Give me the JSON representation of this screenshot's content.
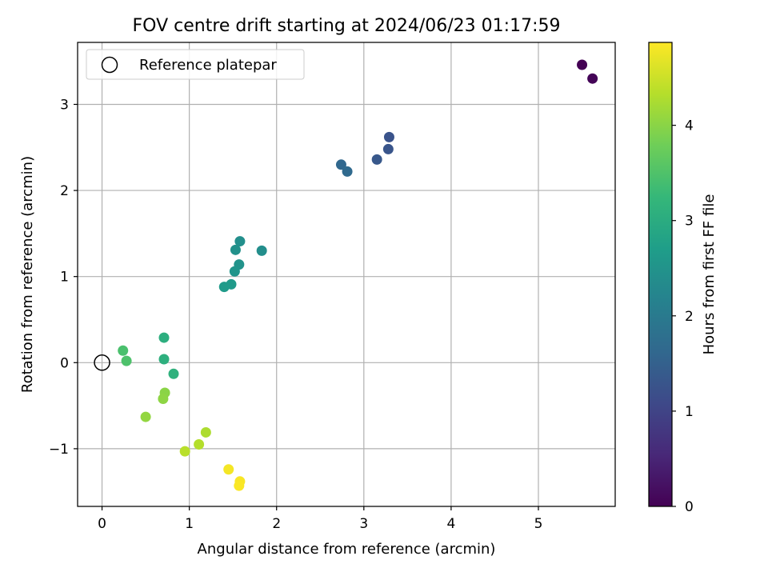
{
  "chart_data": {
    "type": "scatter",
    "title": "FOV centre drift starting at 2024/06/23 01:17:59",
    "xlabel": "Angular distance from reference (arcmin)",
    "ylabel": "Rotation from reference (arcmin)",
    "xlim": [
      -0.28,
      5.88
    ],
    "ylim": [
      -1.67,
      3.72
    ],
    "x_ticks": [
      0,
      1,
      2,
      3,
      4,
      5
    ],
    "y_ticks": [
      -1,
      0,
      1,
      2,
      3
    ],
    "x_tick_labels": [
      "0",
      "1",
      "2",
      "3",
      "4",
      "5"
    ],
    "y_tick_labels": [
      "−1",
      "0",
      "1",
      "2",
      "3"
    ],
    "grid": true,
    "legend": {
      "position": "top-left",
      "entries": [
        {
          "label": "Reference platepar",
          "marker": "open-circle",
          "color": "#000000"
        }
      ]
    },
    "reference_point": {
      "x": 0,
      "y": 0
    },
    "colorbar": {
      "label": "Hours from first FF file",
      "range": [
        0,
        4.87
      ],
      "ticks": [
        0,
        1,
        2,
        3,
        4
      ],
      "tick_labels": [
        "0",
        "1",
        "2",
        "3",
        "4"
      ],
      "colormap": "viridis",
      "colormap_stops": [
        "#440154",
        "#482878",
        "#3e4989",
        "#31688e",
        "#26828e",
        "#1f9e89",
        "#35b779",
        "#6ece58",
        "#b5de2b",
        "#fde725"
      ]
    },
    "points": [
      {
        "x": 5.5,
        "y": 3.46,
        "hours": 0.0
      },
      {
        "x": 5.62,
        "y": 3.3,
        "hours": 0.05
      },
      {
        "x": 3.29,
        "y": 2.62,
        "hours": 1.25
      },
      {
        "x": 3.28,
        "y": 2.48,
        "hours": 1.3
      },
      {
        "x": 3.15,
        "y": 2.36,
        "hours": 1.35
      },
      {
        "x": 2.74,
        "y": 2.3,
        "hours": 1.62
      },
      {
        "x": 2.81,
        "y": 2.22,
        "hours": 1.66
      },
      {
        "x": 1.58,
        "y": 1.41,
        "hours": 2.42
      },
      {
        "x": 1.53,
        "y": 1.31,
        "hours": 2.46
      },
      {
        "x": 1.83,
        "y": 1.3,
        "hours": 2.4
      },
      {
        "x": 1.57,
        "y": 1.14,
        "hours": 2.5
      },
      {
        "x": 1.52,
        "y": 1.06,
        "hours": 2.54
      },
      {
        "x": 1.48,
        "y": 0.91,
        "hours": 2.62
      },
      {
        "x": 1.4,
        "y": 0.88,
        "hours": 2.64
      },
      {
        "x": 0.71,
        "y": 0.29,
        "hours": 3.05
      },
      {
        "x": 0.71,
        "y": 0.04,
        "hours": 3.08
      },
      {
        "x": 0.82,
        "y": -0.13,
        "hours": 3.12
      },
      {
        "x": 0.24,
        "y": 0.14,
        "hours": 3.45
      },
      {
        "x": 0.28,
        "y": 0.02,
        "hours": 3.48
      },
      {
        "x": 0.72,
        "y": -0.35,
        "hours": 4.0
      },
      {
        "x": 0.7,
        "y": -0.42,
        "hours": 4.03
      },
      {
        "x": 0.5,
        "y": -0.63,
        "hours": 4.07
      },
      {
        "x": 1.19,
        "y": -0.81,
        "hours": 4.27
      },
      {
        "x": 1.11,
        "y": -0.95,
        "hours": 4.32
      },
      {
        "x": 0.95,
        "y": -1.03,
        "hours": 4.36
      },
      {
        "x": 1.45,
        "y": -1.24,
        "hours": 4.8
      },
      {
        "x": 1.58,
        "y": -1.38,
        "hours": 4.83
      },
      {
        "x": 1.57,
        "y": -1.43,
        "hours": 4.85
      }
    ]
  }
}
